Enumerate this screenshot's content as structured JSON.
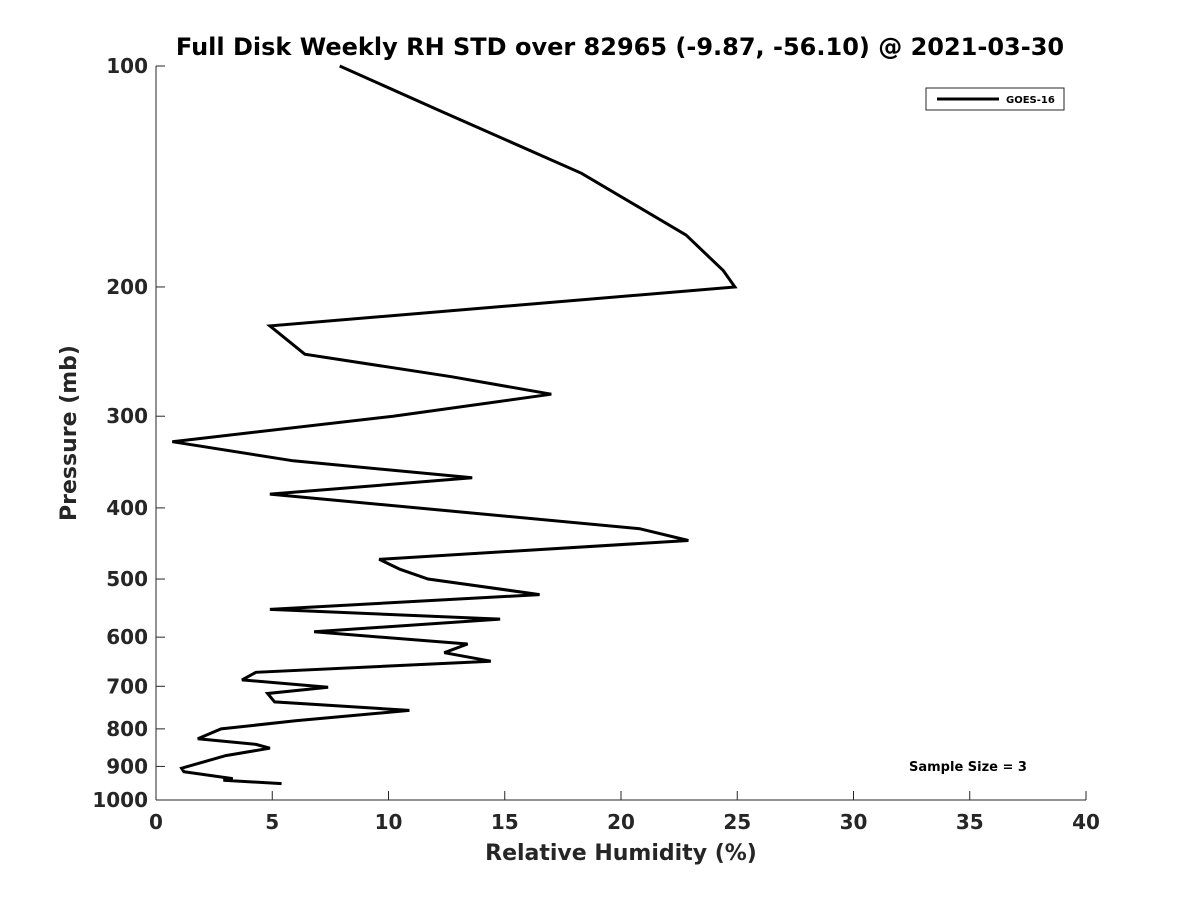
{
  "chart_data": {
    "type": "line",
    "title": "Full Disk Weekly RH STD over 82965 (-9.87, -56.10) @ 2021-03-30",
    "xlabel": "Relative Humidity (%)",
    "ylabel": "Pressure (mb)",
    "xlim": [
      0,
      40
    ],
    "ylim": [
      100,
      1000
    ],
    "y_scale": "log",
    "y_reversed": true,
    "x_ticks": [
      0,
      5,
      10,
      15,
      20,
      25,
      30,
      35,
      40
    ],
    "y_ticks": [
      100,
      200,
      300,
      400,
      500,
      600,
      700,
      800,
      900,
      1000
    ],
    "grid": false,
    "legend_position": "top-right",
    "series": [
      {
        "name": "GOES-16",
        "color": "#000000",
        "x": [
          7.9,
          12.2,
          18.3,
          22.8,
          24.4,
          24.9,
          4.9,
          6.4,
          12.7,
          17.0,
          10.2,
          0.7,
          5.9,
          13.6,
          4.9,
          20.8,
          22.9,
          9.6,
          10.5,
          11.7,
          16.5,
          4.9,
          14.8,
          6.8,
          13.4,
          12.4,
          14.4,
          4.3,
          3.7,
          7.4,
          4.8,
          5.1,
          10.9,
          6.0,
          2.8,
          1.8,
          4.3,
          4.9,
          3.0,
          1.1,
          1.2,
          3.3,
          2.9,
          5.4
        ],
        "y": [
          100,
          115,
          140,
          170,
          190,
          200,
          226,
          247,
          265,
          280,
          300,
          325,
          345,
          364,
          383,
          427,
          443,
          470,
          485,
          500,
          525,
          550,
          567,
          590,
          613,
          630,
          647,
          670,
          686,
          702,
          716,
          735,
          755,
          780,
          800,
          825,
          840,
          850,
          870,
          905,
          915,
          935,
          940,
          950
        ]
      }
    ]
  },
  "annotation": "Sample Size = 3"
}
